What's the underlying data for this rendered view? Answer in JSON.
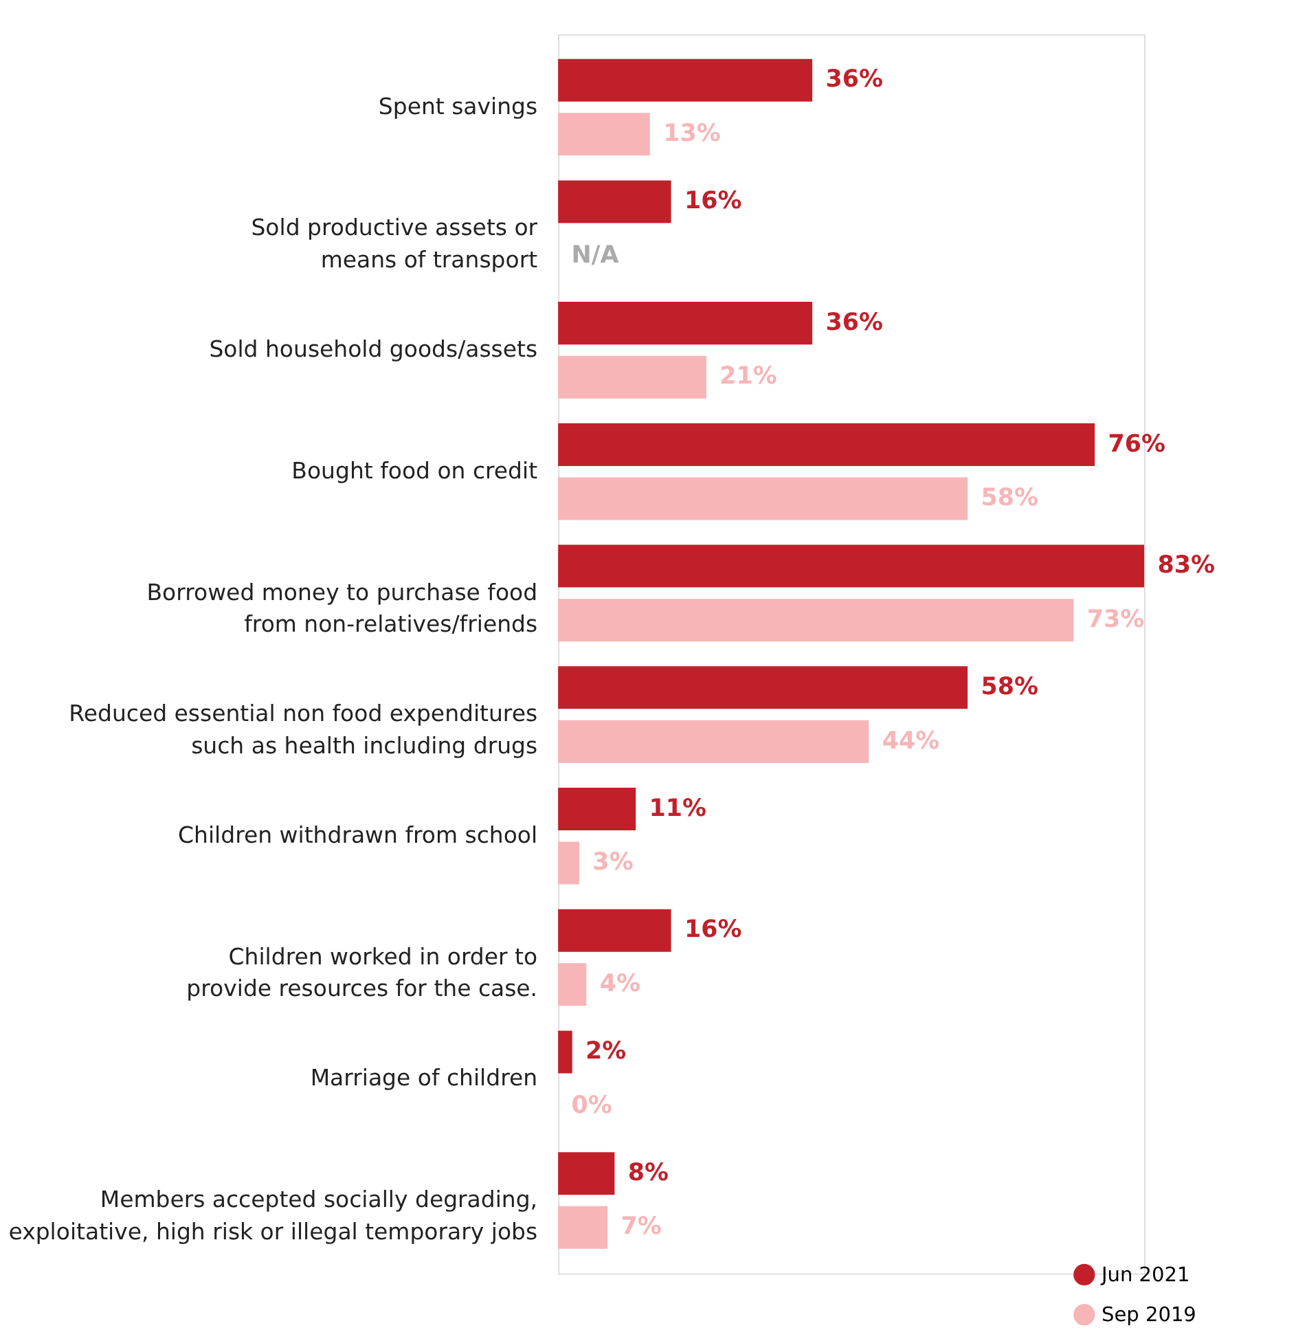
{
  "chart_data": {
    "type": "bar",
    "orientation": "horizontal",
    "legend": "bottom right",
    "marker": "circle",
    "categories": [
      "Spent savings",
      "Sold productive assets or\nmeans of transport ",
      "Sold household goods/assets ",
      "Bought food on credit",
      "Borrowed money to purchase food \nfrom non-relatives/friends",
      "Reduced essential non food expenditures\nsuch as health including drugs",
      "Children withdrawn from school",
      "Children worked in order to\nprovide resources for the case. ",
      "Marriage of children",
      "Members accepted socially degrading,\nexploitative, high risk or illegal temporary jobs"
    ],
    "series": [
      {
        "name": "Jun 2021",
        "color": "#c1202a",
        "values": [
          36,
          16,
          36,
          76,
          83,
          58,
          11,
          16,
          2,
          8
        ],
        "value_labels": [
          "36%",
          "16%",
          "36%",
          "76%",
          "83%",
          "58%",
          "11%",
          "16%",
          "2%",
          "8%"
        ]
      },
      {
        "name": "Sep 2019",
        "color": "#f7b5b7",
        "values": [
          13,
          null,
          21,
          58,
          73,
          44,
          3,
          4,
          0,
          7
        ],
        "value_labels": [
          "13%",
          "N/A",
          "21%",
          "58%",
          "73%",
          "44%",
          "3%",
          "4%",
          "0%",
          "7%"
        ]
      }
    ]
  }
}
